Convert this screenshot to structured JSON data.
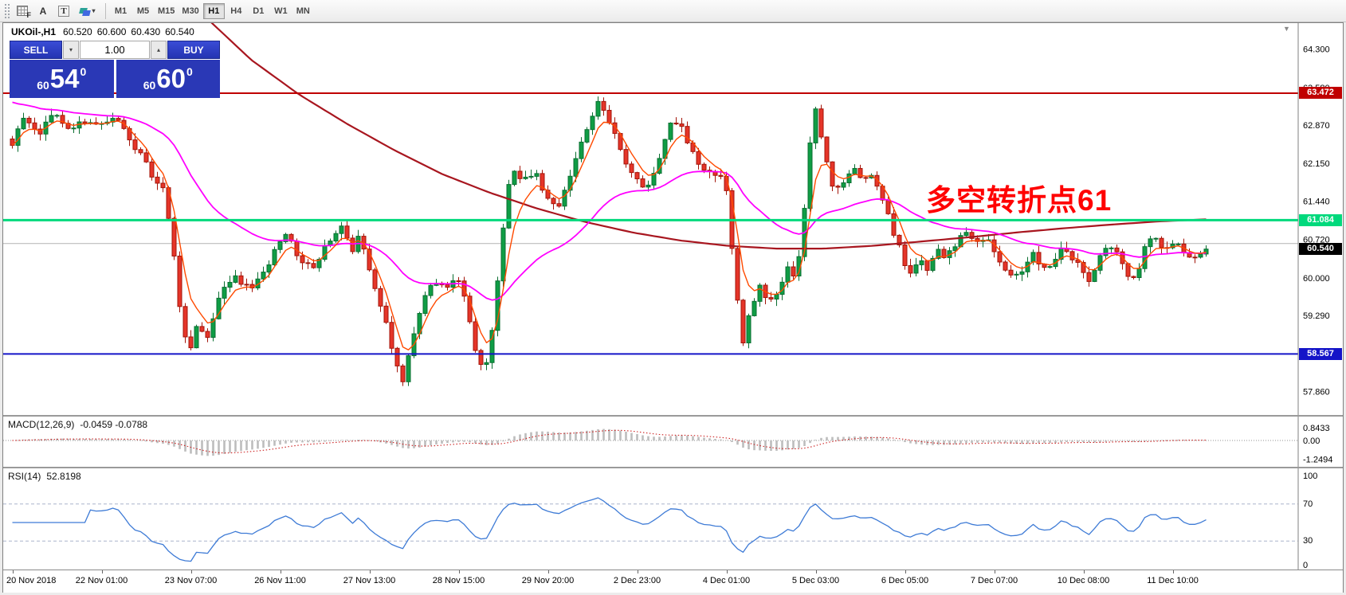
{
  "toolbar": {
    "tool_icons": [
      {
        "name": "chart-grid",
        "label": "F"
      },
      {
        "name": "text-label",
        "label": "A"
      },
      {
        "name": "text-tool",
        "label": "T"
      },
      {
        "name": "draw-shapes",
        "label": ""
      }
    ],
    "timeframes": [
      {
        "label": "M1",
        "active": false
      },
      {
        "label": "M5",
        "active": false
      },
      {
        "label": "M15",
        "active": false
      },
      {
        "label": "M30",
        "active": false
      },
      {
        "label": "H1",
        "active": true
      },
      {
        "label": "H4",
        "active": false
      },
      {
        "label": "D1",
        "active": false
      },
      {
        "label": "W1",
        "active": false
      },
      {
        "label": "MN",
        "active": false
      }
    ]
  },
  "icons": {
    "dropdown": "▾",
    "spinner_up": "▴",
    "scroll_marker": "▼"
  },
  "trade_panel": {
    "sell_label": "SELL",
    "buy_label": "BUY",
    "volume": "1.00",
    "sell_price": {
      "prefix": "60",
      "big": "54",
      "sup": "0"
    },
    "buy_price": {
      "prefix": "60",
      "big": "60",
      "sup": "0"
    }
  },
  "chart_data": {
    "type": "candlestick",
    "symbol": "UKOil-",
    "timeframe": "H1",
    "title": "UKOil-,H1",
    "ohlc": {
      "open": "60.520",
      "high": "60.600",
      "low": "60.430",
      "close": "60.540"
    },
    "y_axis": {
      "ticks": [
        "64.300",
        "63.580",
        "62.870",
        "62.150",
        "61.440",
        "60.720",
        "60.000",
        "59.290",
        "58.580",
        "57.860"
      ]
    },
    "x_axis": {
      "labels": [
        "20 Nov 2018",
        "22 Nov 01:00",
        "23 Nov 07:00",
        "26 Nov 11:00",
        "27 Nov 13:00",
        "28 Nov 15:00",
        "29 Nov 20:00",
        "2 Dec 23:00",
        "4 Dec 01:00",
        "5 Dec 03:00",
        "6 Dec 05:00",
        "7 Dec 07:00",
        "10 Dec 08:00",
        "11 Dec 10:00"
      ]
    },
    "levels": [
      {
        "name": "resistance-line",
        "price": 63.472,
        "label": "63.472",
        "color": "#c00000",
        "width": 2
      },
      {
        "name": "pivot-line",
        "price": 61.084,
        "label": "61.084",
        "color": "#00d97c",
        "width": 3
      },
      {
        "name": "support-line",
        "price": 58.567,
        "label": "58.567",
        "color": "#1414c8",
        "width": 2
      }
    ],
    "current_price": {
      "price": 60.54,
      "label": "60.540",
      "color": "#000000"
    },
    "gray_line_price": 60.645,
    "annotation": {
      "text": "多空转折点61",
      "color": "#ff0000"
    },
    "colors": {
      "up": "#0f9d45",
      "up_dark": "#0a6e30",
      "down": "#e53529",
      "down_dark": "#a31409",
      "ma_fast": "#ff4a00",
      "ma_mid": "#ff00ff",
      "ma_slow": "#a8161f",
      "macd_hist": "#bdbdbd",
      "macd_signal": "#cc2222",
      "rsi": "#3e7bd6"
    },
    "indicators": {
      "macd": {
        "label": "MACD(12,26,9)",
        "values": "-0.0459 -0.0788",
        "ticks": [
          "0.8433",
          "0.00",
          "-1.2494"
        ],
        "params": [
          12,
          26,
          9
        ]
      },
      "rsi": {
        "label": "RSI(14)",
        "value": "52.8198",
        "ticks": [
          "100",
          "70",
          "30",
          "0"
        ],
        "levels": [
          70,
          30
        ],
        "period": 14
      }
    },
    "price_path": [
      [
        0.0,
        62.55
      ],
      [
        0.01,
        63.0
      ],
      [
        0.022,
        62.7
      ],
      [
        0.034,
        63.1
      ],
      [
        0.046,
        62.75
      ],
      [
        0.058,
        63.0
      ],
      [
        0.072,
        62.85
      ],
      [
        0.085,
        63.05
      ],
      [
        0.098,
        62.6
      ],
      [
        0.108,
        62.3
      ],
      [
        0.118,
        61.9
      ],
      [
        0.127,
        61.65
      ],
      [
        0.134,
        60.8
      ],
      [
        0.141,
        59.3
      ],
      [
        0.148,
        58.6
      ],
      [
        0.155,
        59.15
      ],
      [
        0.163,
        58.85
      ],
      [
        0.172,
        59.55
      ],
      [
        0.185,
        60.05
      ],
      [
        0.2,
        59.75
      ],
      [
        0.214,
        60.25
      ],
      [
        0.228,
        60.85
      ],
      [
        0.241,
        60.35
      ],
      [
        0.254,
        60.2
      ],
      [
        0.266,
        60.75
      ],
      [
        0.275,
        61.0
      ],
      [
        0.284,
        60.5
      ],
      [
        0.292,
        60.8
      ],
      [
        0.303,
        59.85
      ],
      [
        0.312,
        59.25
      ],
      [
        0.32,
        58.45
      ],
      [
        0.327,
        57.98
      ],
      [
        0.334,
        58.8
      ],
      [
        0.343,
        59.5
      ],
      [
        0.353,
        59.95
      ],
      [
        0.363,
        59.75
      ],
      [
        0.373,
        60.05
      ],
      [
        0.382,
        59.35
      ],
      [
        0.39,
        58.45
      ],
      [
        0.397,
        58.35
      ],
      [
        0.404,
        59.4
      ],
      [
        0.411,
        60.9
      ],
      [
        0.418,
        62.15
      ],
      [
        0.428,
        61.85
      ],
      [
        0.438,
        62.0
      ],
      [
        0.447,
        61.55
      ],
      [
        0.456,
        61.25
      ],
      [
        0.466,
        61.9
      ],
      [
        0.476,
        62.45
      ],
      [
        0.486,
        63.05
      ],
      [
        0.493,
        63.35
      ],
      [
        0.501,
        62.9
      ],
      [
        0.511,
        62.3
      ],
      [
        0.521,
        61.85
      ],
      [
        0.531,
        61.7
      ],
      [
        0.541,
        62.2
      ],
      [
        0.551,
        62.85
      ],
      [
        0.558,
        63.0
      ],
      [
        0.566,
        62.5
      ],
      [
        0.576,
        62.1
      ],
      [
        0.586,
        61.9
      ],
      [
        0.593,
        62.0
      ],
      [
        0.599,
        61.5
      ],
      [
        0.605,
        60.1
      ],
      [
        0.611,
        58.7
      ],
      [
        0.618,
        59.35
      ],
      [
        0.626,
        59.9
      ],
      [
        0.634,
        59.55
      ],
      [
        0.642,
        59.75
      ],
      [
        0.649,
        60.25
      ],
      [
        0.656,
        60.05
      ],
      [
        0.661,
        60.6
      ],
      [
        0.666,
        61.9
      ],
      [
        0.671,
        63.3
      ],
      [
        0.677,
        62.7
      ],
      [
        0.683,
        62.1
      ],
      [
        0.689,
        61.55
      ],
      [
        0.697,
        61.85
      ],
      [
        0.705,
        62.1
      ],
      [
        0.713,
        61.85
      ],
      [
        0.719,
        62.0
      ],
      [
        0.727,
        61.55
      ],
      [
        0.735,
        61.05
      ],
      [
        0.743,
        60.55
      ],
      [
        0.751,
        60.1
      ],
      [
        0.759,
        60.3
      ],
      [
        0.767,
        60.2
      ],
      [
        0.775,
        60.5
      ],
      [
        0.783,
        60.4
      ],
      [
        0.791,
        60.65
      ],
      [
        0.799,
        60.85
      ],
      [
        0.807,
        60.6
      ],
      [
        0.815,
        60.8
      ],
      [
        0.823,
        60.5
      ],
      [
        0.831,
        60.2
      ],
      [
        0.839,
        59.95
      ],
      [
        0.847,
        60.2
      ],
      [
        0.855,
        60.45
      ],
      [
        0.863,
        60.1
      ],
      [
        0.871,
        60.3
      ],
      [
        0.879,
        60.55
      ],
      [
        0.887,
        60.4
      ],
      [
        0.895,
        60.15
      ],
      [
        0.903,
        59.95
      ],
      [
        0.911,
        60.45
      ],
      [
        0.919,
        60.65
      ],
      [
        0.927,
        60.5
      ],
      [
        0.934,
        60.0
      ],
      [
        0.941,
        59.95
      ],
      [
        0.949,
        60.6
      ],
      [
        0.957,
        60.85
      ],
      [
        0.965,
        60.5
      ],
      [
        0.974,
        60.65
      ],
      [
        0.984,
        60.35
      ],
      [
        1.0,
        60.54
      ]
    ],
    "slow_ma_path": [
      [
        0.162,
        64.9
      ],
      [
        0.2,
        64.1
      ],
      [
        0.24,
        63.45
      ],
      [
        0.28,
        62.9
      ],
      [
        0.32,
        62.4
      ],
      [
        0.36,
        61.95
      ],
      [
        0.4,
        61.6
      ],
      [
        0.44,
        61.3
      ],
      [
        0.48,
        61.05
      ],
      [
        0.52,
        60.85
      ],
      [
        0.56,
        60.7
      ],
      [
        0.6,
        60.6
      ],
      [
        0.64,
        60.55
      ],
      [
        0.68,
        60.55
      ],
      [
        0.72,
        60.6
      ],
      [
        0.76,
        60.68
      ],
      [
        0.8,
        60.76
      ],
      [
        0.84,
        60.85
      ],
      [
        0.88,
        60.93
      ],
      [
        0.92,
        61.0
      ],
      [
        0.96,
        61.06
      ],
      [
        1.0,
        61.1
      ]
    ]
  }
}
